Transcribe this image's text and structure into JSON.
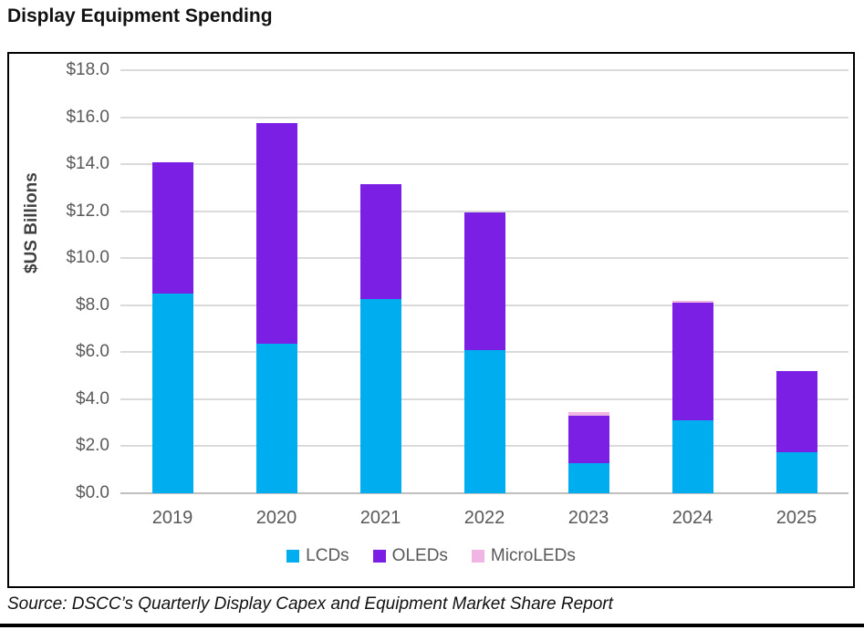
{
  "title": "Display Equipment Spending",
  "source": "Source: DSCC’s Quarterly Display Capex and Equipment Market Share Report",
  "chart_data": {
    "type": "bar",
    "stacked": true,
    "title": "Display Equipment Spending",
    "xlabel": "",
    "ylabel": "$US Billions",
    "ylim": [
      0,
      18
    ],
    "ytick_step": 2,
    "grid": true,
    "legend_position": "bottom",
    "categories": [
      "2019",
      "2020",
      "2021",
      "2022",
      "2023",
      "2024",
      "2025"
    ],
    "series": [
      {
        "name": "LCDs",
        "color": "#00AEEF",
        "values": [
          8.5,
          6.35,
          8.25,
          6.1,
          1.3,
          3.1,
          1.75
        ]
      },
      {
        "name": "OLEDs",
        "color": "#7B1FE4",
        "values": [
          5.6,
          9.4,
          4.9,
          5.85,
          2.0,
          5.0,
          3.45
        ]
      },
      {
        "name": "MicroLEDs",
        "color": "#F1B5E3",
        "values": [
          0,
          0,
          0,
          0,
          0.15,
          0.08,
          0
        ]
      }
    ],
    "stack_totals": [
      14.1,
      15.75,
      13.15,
      11.95,
      3.45,
      8.18,
      5.2
    ],
    "yticks": [
      {
        "value": 0,
        "label": "$0.0"
      },
      {
        "value": 2,
        "label": "$2.0"
      },
      {
        "value": 4,
        "label": "$4.0"
      },
      {
        "value": 6,
        "label": "$6.0"
      },
      {
        "value": 8,
        "label": "$8.0"
      },
      {
        "value": 10,
        "label": "$10.0"
      },
      {
        "value": 12,
        "label": "$12.0"
      },
      {
        "value": 14,
        "label": "$14.0"
      },
      {
        "value": 16,
        "label": "$16.0"
      },
      {
        "value": 18,
        "label": "$18.0"
      }
    ],
    "colors": {
      "gridline": "#dadada",
      "baseline": "#bfbfbf",
      "axis_text": "#595959",
      "frame_border": "#000000"
    }
  }
}
